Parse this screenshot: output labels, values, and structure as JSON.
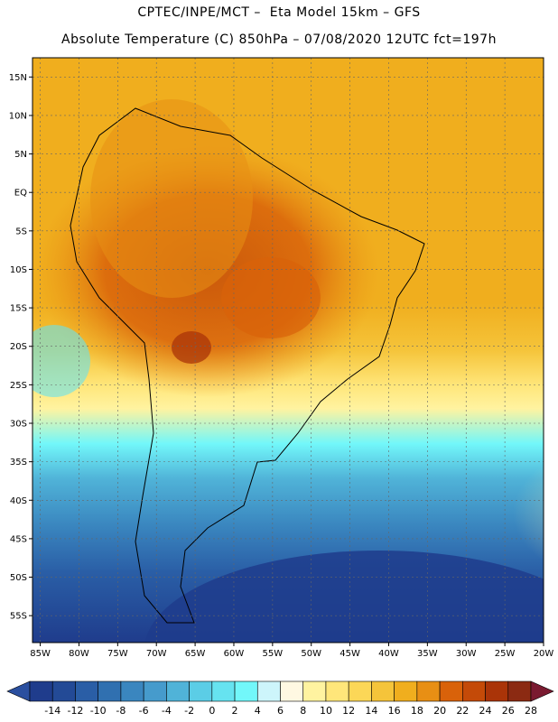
{
  "header": {
    "line1": "CPTEC/INPE/MCT –  Eta Model 15km – GFS",
    "line2": "Absolute Temperature (C) 850hPa – 07/08/2020 12UTC fct=197h"
  },
  "map": {
    "lat_labels": [
      "15N",
      "10N",
      "5N",
      "EQ",
      "5S",
      "10S",
      "15S",
      "20S",
      "25S",
      "30S",
      "35S",
      "40S",
      "45S",
      "50S",
      "55S"
    ],
    "lat_values": [
      15,
      10,
      5,
      0,
      -5,
      -10,
      -15,
      -20,
      -25,
      -30,
      -35,
      -40,
      -45,
      -50,
      -55
    ],
    "lon_labels": [
      "85W",
      "80W",
      "75W",
      "70W",
      "65W",
      "60W",
      "55W",
      "50W",
      "45W",
      "40W",
      "35W",
      "30W",
      "25W",
      "20W"
    ],
    "lon_values": [
      -85,
      -80,
      -75,
      -70,
      -65,
      -60,
      -55,
      -50,
      -45,
      -40,
      -35,
      -30,
      -25,
      -20
    ],
    "extent": {
      "lon_min": -86,
      "lon_max": -20,
      "lat_min": -58.5,
      "lat_max": 17.5
    }
  },
  "colorbar": {
    "labels": [
      "-14",
      "-12",
      "-10",
      "-8",
      "-6",
      "-4",
      "-2",
      "0",
      "2",
      "4",
      "6",
      "8",
      "10",
      "12",
      "14",
      "16",
      "18",
      "20",
      "22",
      "24",
      "26",
      "28"
    ],
    "colors": [
      "#1f3c8c",
      "#234a96",
      "#2a5ea6",
      "#3070b0",
      "#3a86bf",
      "#469bcc",
      "#50b3d8",
      "#5bcde6",
      "#66e3f0",
      "#72f7fa",
      "#cdf5fb",
      "#fff8e2",
      "#fff3a0",
      "#ffe67a",
      "#fcd757",
      "#f5c43a",
      "#f0ae1e",
      "#e88f14",
      "#d9620a",
      "#c44a08",
      "#aa3408",
      "#8b2a12"
    ],
    "under_color": "#2a4f9f",
    "over_color": "#7a1a30"
  }
}
